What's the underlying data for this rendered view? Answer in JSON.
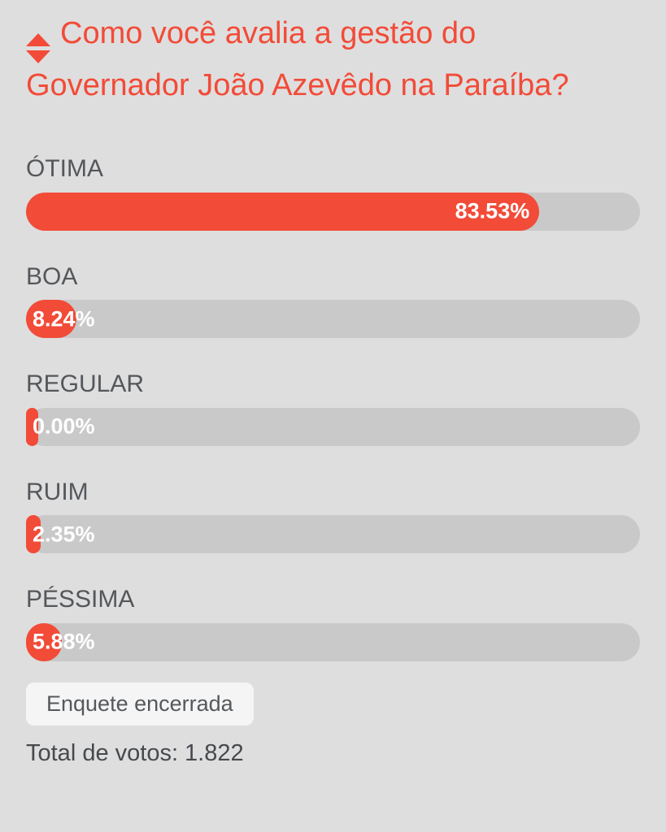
{
  "poll": {
    "question": "Como você avalia a gestão do Governador João Azevêdo na Paraíba?",
    "icon": "up-down-sort-icon",
    "options": [
      {
        "label": "ÓTIMA",
        "pct_label": "83.53%",
        "value": 83.53
      },
      {
        "label": "BOA",
        "pct_label": "8.24%",
        "value": 8.24
      },
      {
        "label": "REGULAR",
        "pct_label": "0.00%",
        "value": 0.0
      },
      {
        "label": "RUIM",
        "pct_label": "2.35%",
        "value": 2.35
      },
      {
        "label": "PÉSSIMA",
        "pct_label": "5.88%",
        "value": 5.88
      }
    ],
    "status_button": "Enquete encerrada",
    "total_votes_text": "Total de votos: 1.822",
    "colors": {
      "accent": "#f24b38",
      "track": "#c9c9c9",
      "background": "#dedede"
    }
  },
  "chart_data": {
    "type": "bar",
    "title": "Como você avalia a gestão do Governador João Azevêdo na Paraíba?",
    "categories": [
      "ÓTIMA",
      "BOA",
      "REGULAR",
      "RUIM",
      "PÉSSIMA"
    ],
    "values": [
      83.53,
      8.24,
      0.0,
      2.35,
      5.88
    ],
    "unit": "%",
    "xlabel": "",
    "ylabel": "",
    "xlim": [
      0,
      100
    ],
    "total_votes": 1822,
    "legend": false,
    "grid": false,
    "orientation": "horizontal"
  }
}
